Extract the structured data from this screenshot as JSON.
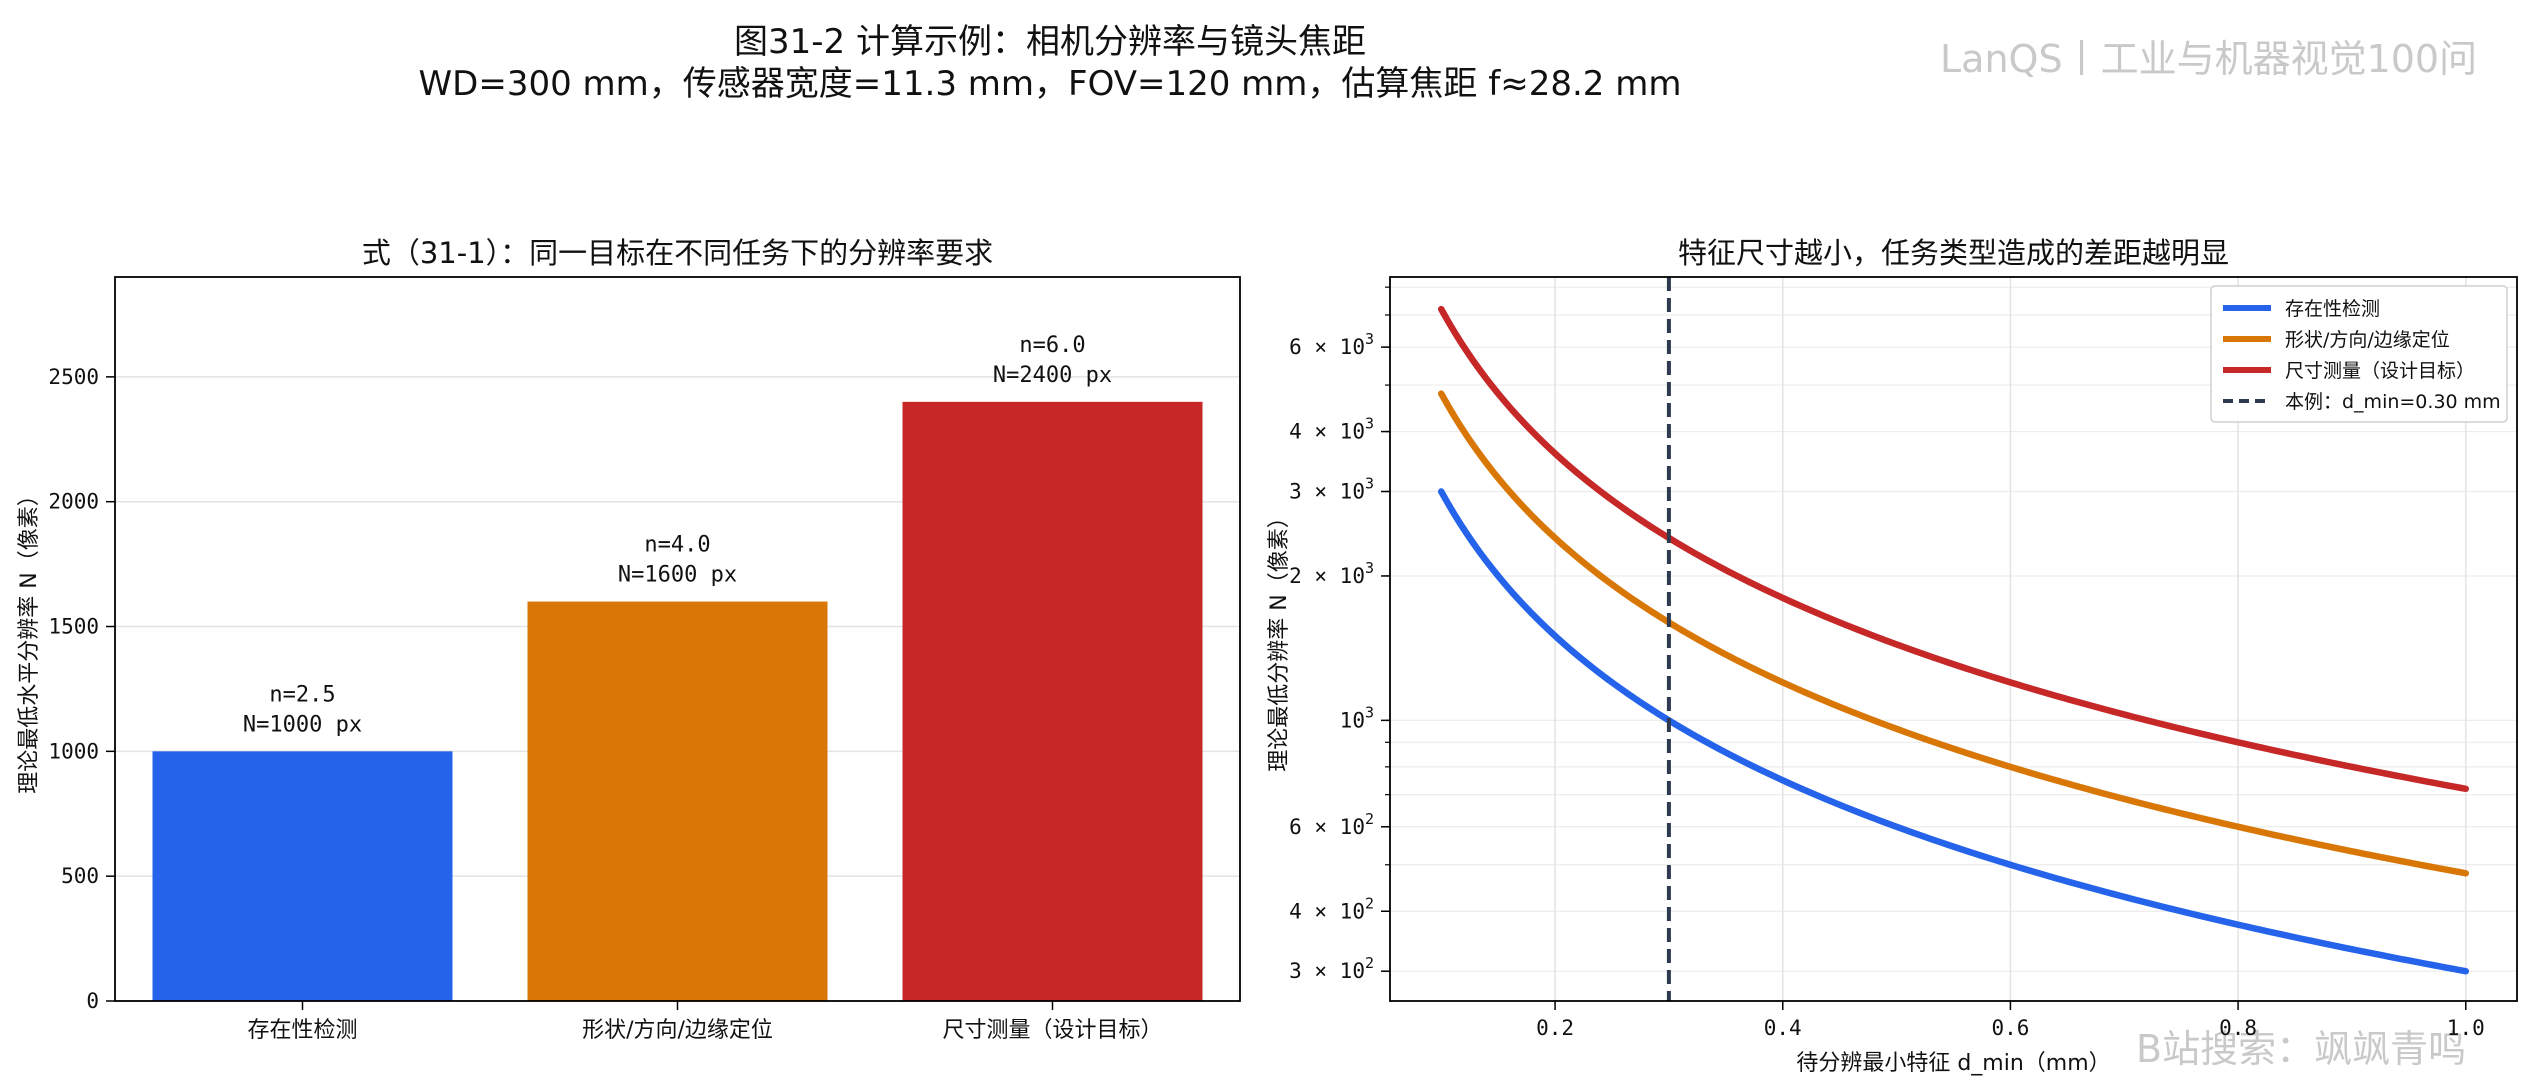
{
  "figure": {
    "title": "图31-2 计算示例：相机分辨率与镜头焦距",
    "subtitle": "WD=300 mm，传感器宽度=11.3 mm，FOV=120 mm，估算焦距 f≈28.2 mm"
  },
  "watermarks": {
    "top_right": "LanQS丨工业与机器视觉100问",
    "bottom_right": "B站搜索：飒飒青鸣"
  },
  "chart_data": [
    {
      "type": "bar",
      "title": "式（31-1）：同一目标在不同任务下的分辨率要求",
      "xlabel": "",
      "ylabel": "理论最低水平分辨率 N（像素）",
      "ylim": [
        0,
        2900
      ],
      "yticks": [
        0,
        500,
        1000,
        1500,
        2000,
        2500
      ],
      "grid": true,
      "categories": [
        "存在性检测",
        "形状/方向/边缘定位",
        "尺寸测量（设计目标）"
      ],
      "values": [
        1000,
        1600,
        2400
      ],
      "colors": [
        "#2563eb",
        "#d97706",
        "#c62828"
      ],
      "labels": [
        [
          "n=2.5",
          "N=1000 px"
        ],
        [
          "n=4.0",
          "N=1600 px"
        ],
        [
          "n=6.0",
          "N=2400 px"
        ]
      ]
    },
    {
      "type": "line",
      "title": "特征尺寸越小，任务类型造成的差距越明显",
      "xlabel": "待分辨最小特征 d_min（mm）",
      "ylabel": "理论最低分辨率 N（像素）",
      "xlim": [
        0.055,
        1.045
      ],
      "xticks": [
        "0.2",
        "0.4",
        "0.6",
        "0.8",
        "1.0"
      ],
      "yscale": "log",
      "ylim": [
        260,
        8400
      ],
      "yticks": [
        {
          "base": "3",
          "exp": "2",
          "value": 300
        },
        {
          "base": "4",
          "exp": "2",
          "value": 400
        },
        {
          "base": "6",
          "exp": "2",
          "value": 600
        },
        {
          "base": "",
          "exp": "3",
          "value": 1000
        },
        {
          "base": "2",
          "exp": "3",
          "value": 2000
        },
        {
          "base": "3",
          "exp": "3",
          "value": 3000
        },
        {
          "base": "4",
          "exp": "3",
          "value": 4000
        },
        {
          "base": "6",
          "exp": "3",
          "value": 6000
        }
      ],
      "grid": true,
      "legend_position": "top-right",
      "x_range": [
        0.1,
        1.0
      ],
      "fov_mm": 120,
      "series": [
        {
          "name": "存在性检测",
          "n": 2.5,
          "color": "#2563eb"
        },
        {
          "name": "形状/方向/边缘定位",
          "n": 4.0,
          "color": "#d97706"
        },
        {
          "name": "尺寸测量（设计目标）",
          "n": 6.0,
          "color": "#c62828"
        }
      ],
      "reference_line": {
        "name": "本例：d_min=0.30 mm",
        "x": 0.3,
        "color": "#2e3a4f"
      }
    }
  ]
}
